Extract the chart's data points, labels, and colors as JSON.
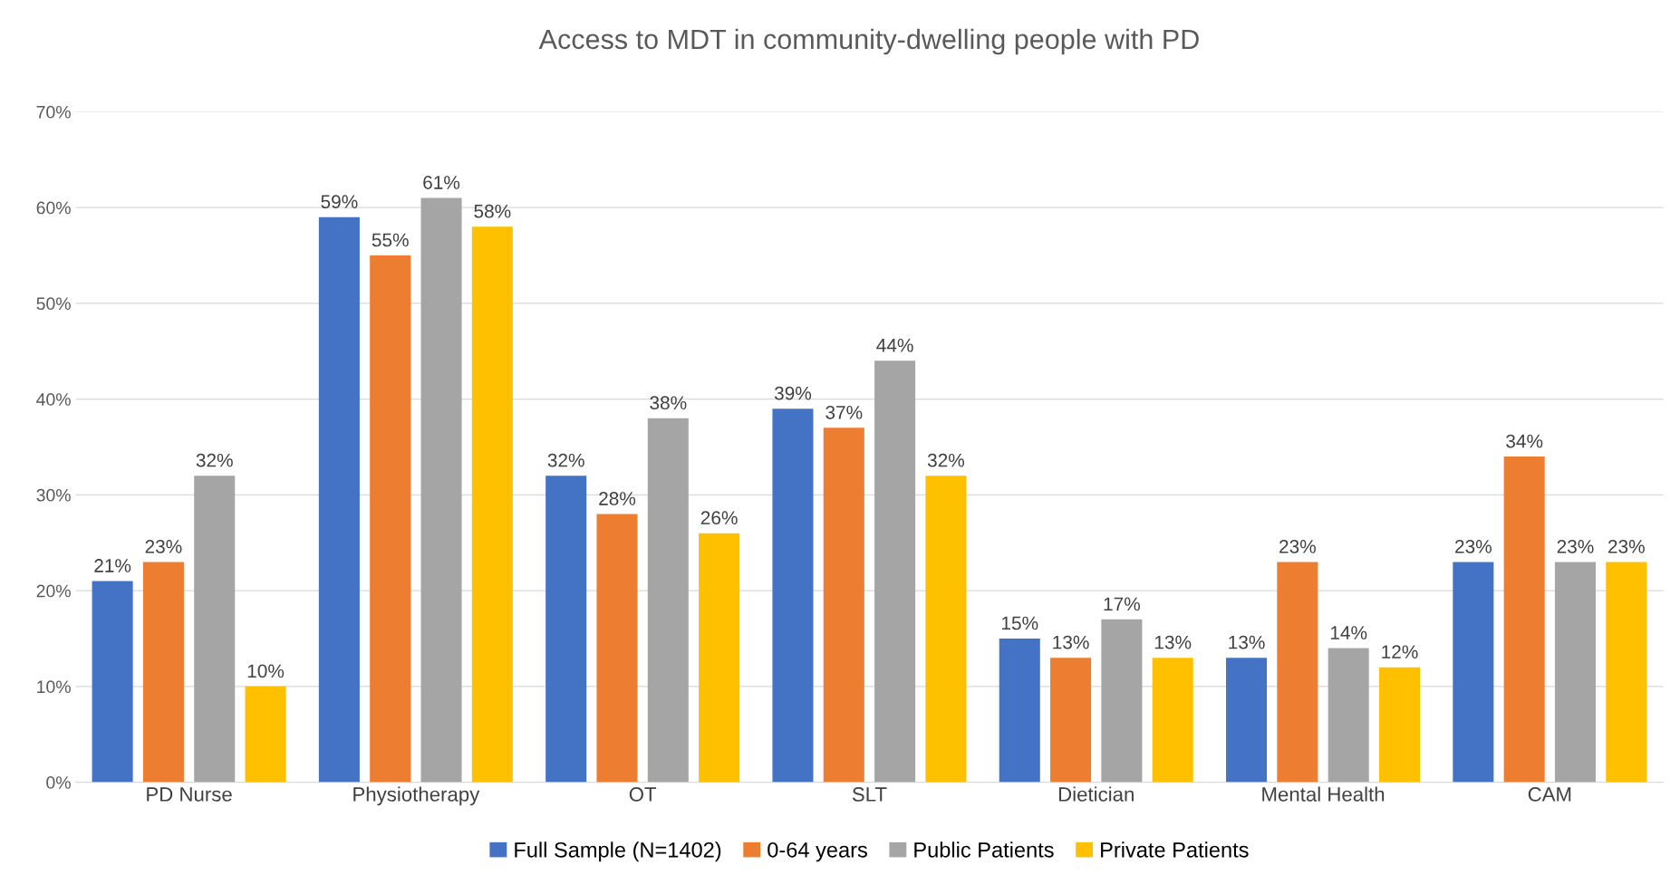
{
  "chart_data": {
    "type": "bar",
    "title": "Access to MDT in community-dwelling people with PD",
    "categories": [
      "PD Nurse",
      "Physiotherapy",
      "OT",
      "SLT",
      "Dietician",
      "Mental Health",
      "CAM"
    ],
    "series": [
      {
        "name": "Full Sample (N=1402)",
        "color": "#4472c4",
        "values": [
          21,
          59,
          32,
          39,
          15,
          13,
          23
        ],
        "value_labels": [
          "21%",
          "59%",
          "32%",
          "39%",
          "15%",
          "13%",
          "23%"
        ]
      },
      {
        "name": "0-64 years",
        "color": "#ed7d31",
        "values": [
          23,
          55,
          28,
          37,
          13,
          23,
          34
        ],
        "value_labels": [
          "23%",
          "55%",
          "28%",
          "37%",
          "13%",
          "23%",
          "34%"
        ]
      },
      {
        "name": "Public Patients",
        "color": "#a5a5a5",
        "values": [
          32,
          61,
          38,
          44,
          17,
          14,
          23
        ],
        "value_labels": [
          "32%",
          "61%",
          "38%",
          "44%",
          "17%",
          "14%",
          "23%"
        ]
      },
      {
        "name": "Private Patients",
        "color": "#ffc000",
        "values": [
          10,
          58,
          26,
          32,
          13,
          12,
          23
        ],
        "value_labels": [
          "10%",
          "58%",
          "26%",
          "32%",
          "13%",
          "12%",
          "23%"
        ]
      }
    ],
    "ylim": [
      0,
      70
    ],
    "yticks": [
      {
        "value": 0,
        "label": "0%"
      },
      {
        "value": 10,
        "label": "10%"
      },
      {
        "value": 20,
        "label": "20%"
      },
      {
        "value": 30,
        "label": "30%"
      },
      {
        "value": 40,
        "label": "40%"
      },
      {
        "value": 50,
        "label": "50%"
      },
      {
        "value": 60,
        "label": "60%"
      },
      {
        "value": 70,
        "label": "70%"
      }
    ],
    "grid": "y",
    "legend": "bottom"
  }
}
